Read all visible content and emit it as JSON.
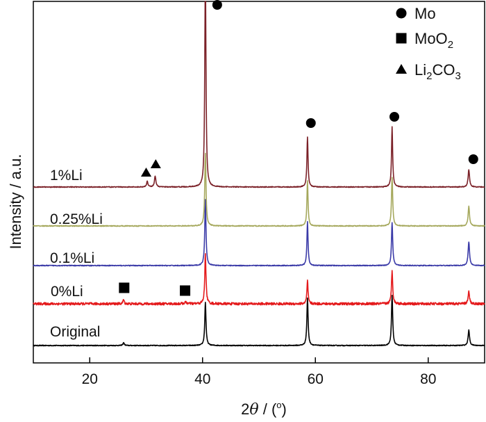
{
  "chart_data": {
    "type": "line",
    "title": "",
    "xlabel_parts": {
      "prefix": "2",
      "theta": "θ",
      "sep": " / (",
      "deg": "o",
      "suffix": ")"
    },
    "ylabel": "Intensity / a.u.",
    "xlim": [
      10,
      90
    ],
    "x_ticks": [
      20,
      40,
      60,
      80
    ],
    "y_ticks_shown": false,
    "legend": {
      "position": "top-right",
      "entries": [
        {
          "marker": "circle",
          "parts": [
            {
              "t": "Mo",
              "sub": false
            }
          ]
        },
        {
          "marker": "square",
          "parts": [
            {
              "t": "MoO",
              "sub": false
            },
            {
              "t": "2",
              "sub": true
            }
          ]
        },
        {
          "marker": "triangle",
          "parts": [
            {
              "t": "Li",
              "sub": false
            },
            {
              "t": "2",
              "sub": true
            },
            {
              "t": "CO",
              "sub": false
            },
            {
              "t": "3",
              "sub": true
            }
          ]
        }
      ]
    },
    "series": [
      {
        "name": "Original",
        "color": "#000000",
        "noise": 0.6,
        "baseline_offset": 0,
        "peaks": [
          [
            26.0,
            4,
            0.15
          ],
          [
            40.5,
            62,
            0.13
          ],
          [
            58.6,
            68,
            0.13
          ],
          [
            73.6,
            72,
            0.13
          ],
          [
            87.2,
            22,
            0.15
          ]
        ]
      },
      {
        "name": "0%Li",
        "color": "#e41a1c",
        "noise": 1.8,
        "baseline_offset": 60,
        "peaks": [
          [
            26.0,
            6,
            0.13
          ],
          [
            37.0,
            2,
            0.3
          ],
          [
            40.5,
            72,
            0.13
          ],
          [
            58.6,
            33,
            0.12
          ],
          [
            73.6,
            48,
            0.13
          ],
          [
            87.2,
            17,
            0.15
          ]
        ]
      },
      {
        "name": "0.1%Li",
        "color": "#3b3ba8",
        "noise": 0.6,
        "baseline_offset": 115,
        "peaks": [
          [
            40.5,
            95,
            0.13
          ],
          [
            58.6,
            63,
            0.12
          ],
          [
            73.6,
            62,
            0.13
          ],
          [
            87.2,
            34,
            0.15
          ]
        ]
      },
      {
        "name": "0.25%Li",
        "color": "#a5a85c",
        "noise": 0.6,
        "baseline_offset": 172,
        "peaks": [
          [
            40.5,
            105,
            0.13
          ],
          [
            58.6,
            65,
            0.12
          ],
          [
            73.6,
            70,
            0.13
          ],
          [
            87.2,
            28,
            0.15
          ]
        ]
      },
      {
        "name": "1%Li",
        "color": "#7b2128",
        "noise": 0.6,
        "baseline_offset": 228,
        "peaks": [
          [
            30.2,
            8,
            0.15
          ],
          [
            31.6,
            16,
            0.15
          ],
          [
            40.5,
            330,
            0.12
          ],
          [
            58.6,
            72,
            0.12
          ],
          [
            73.6,
            87,
            0.12
          ],
          [
            87.2,
            25,
            0.15
          ]
        ]
      }
    ],
    "phase_markers": [
      {
        "marker": "circle",
        "x": 42.6,
        "y_offset_above_1pct": 262
      },
      {
        "marker": "circle",
        "x": 59.2,
        "y_offset_above_1pct": 92
      },
      {
        "marker": "circle",
        "x": 74.0,
        "y_offset_above_1pct": 101
      },
      {
        "marker": "circle",
        "x": 88.0,
        "y_offset_above_1pct": 40
      },
      {
        "marker": "triangle",
        "x": 30.0,
        "y_offset_above_1pct": 21
      },
      {
        "marker": "triangle",
        "x": 31.7,
        "y_offset_above_1pct": 33
      },
      {
        "marker": "square",
        "x": 26.1,
        "y_offset_above_0pct": 23
      },
      {
        "marker": "square",
        "x": 36.9,
        "y_offset_above_0pct": 19
      }
    ]
  }
}
